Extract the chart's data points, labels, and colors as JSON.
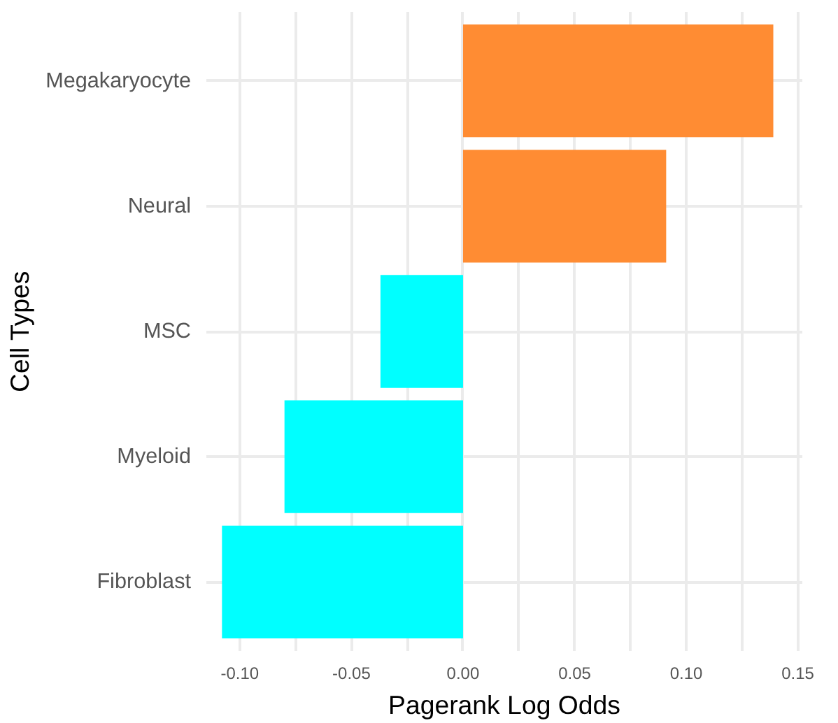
{
  "chart_data": {
    "type": "bar",
    "orientation": "horizontal",
    "xlabel": "Pagerank Log Odds",
    "ylabel": "Cell Types",
    "categories": [
      "Megakaryocyte",
      "Neural",
      "MSC",
      "Myeloid",
      "Fibroblast"
    ],
    "values": [
      0.139,
      0.091,
      -0.037,
      -0.08,
      -0.108
    ],
    "colors": [
      "#ff8c33",
      "#ff8c33",
      "#00ffff",
      "#00ffff",
      "#00ffff"
    ],
    "xlim": [
      -0.115,
      0.152
    ],
    "xticks": [
      {
        "value": -0.1,
        "label": "-0.10"
      },
      {
        "value": -0.075,
        "label": null
      },
      {
        "value": -0.05,
        "label": "-0.05"
      },
      {
        "value": -0.025,
        "label": null
      },
      {
        "value": 0.0,
        "label": "0.00"
      },
      {
        "value": 0.025,
        "label": null
      },
      {
        "value": 0.05,
        "label": "0.05"
      },
      {
        "value": 0.075,
        "label": null
      },
      {
        "value": 0.1,
        "label": "0.10"
      },
      {
        "value": 0.125,
        "label": null
      },
      {
        "value": 0.15,
        "label": "0.15"
      }
    ],
    "grid": true
  }
}
